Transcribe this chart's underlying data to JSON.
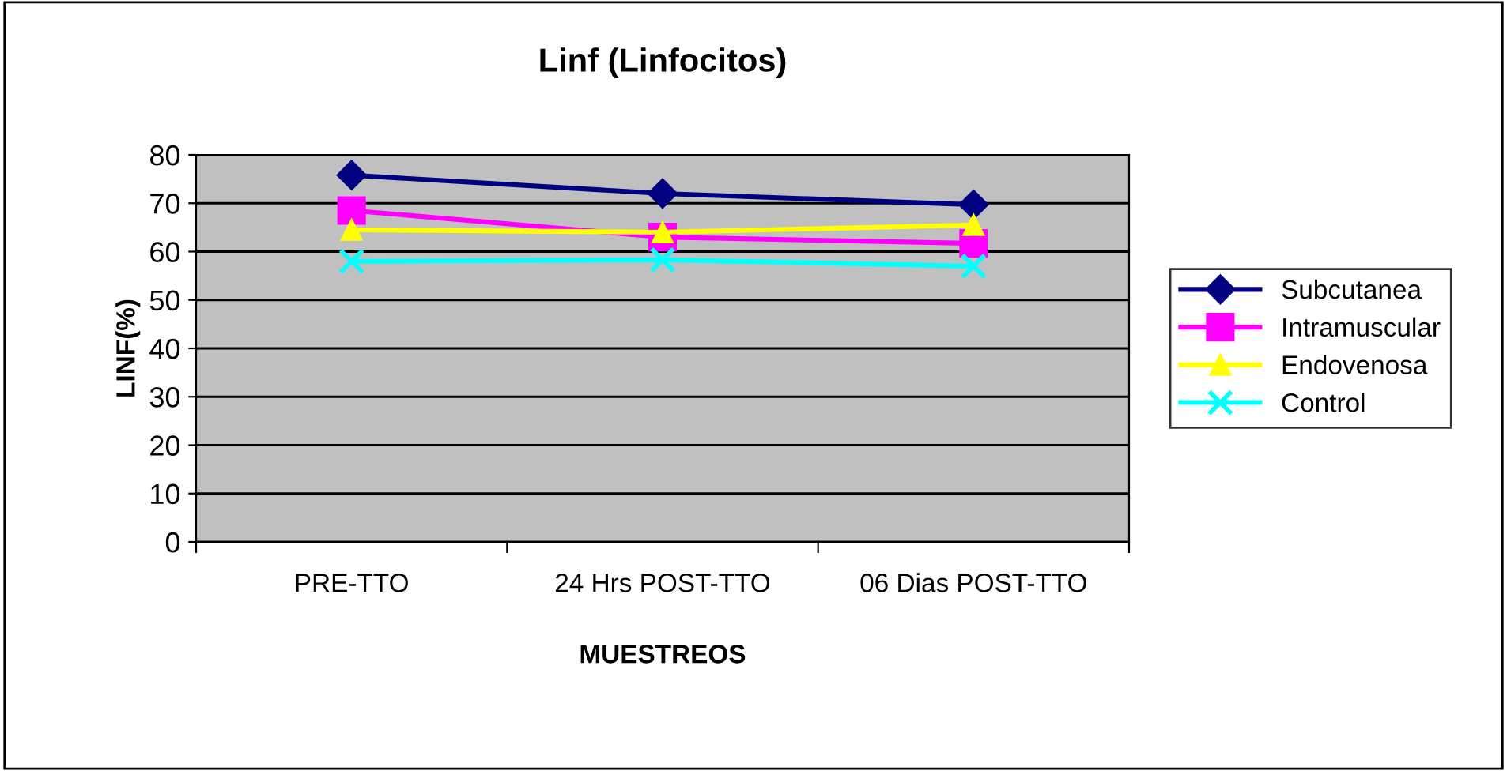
{
  "chart_data": {
    "type": "line",
    "title": "Linf (Linfocitos)",
    "xlabel": "MUESTREOS",
    "ylabel": "LINF(%)",
    "categories": [
      "PRE-TTO",
      "24 Hrs POST-TTO",
      "06 Dias POST-TTO"
    ],
    "series": [
      {
        "name": "Subcutanea",
        "color": "#000080",
        "marker": "diamond",
        "values": [
          75.8,
          72,
          69.7
        ]
      },
      {
        "name": "Intramuscular",
        "color": "#ff00ff",
        "marker": "square",
        "values": [
          68.5,
          63,
          61.7
        ]
      },
      {
        "name": "Endovenosa",
        "color": "#ffff00",
        "marker": "triangle",
        "values": [
          64.5,
          64,
          65.5
        ]
      },
      {
        "name": "Control",
        "color": "#00ffff",
        "marker": "cross",
        "values": [
          58,
          58.3,
          57
        ]
      }
    ],
    "ylim": [
      0,
      80
    ],
    "yticks": [
      0,
      10,
      20,
      30,
      40,
      50,
      60,
      70,
      80
    ],
    "grid": "y",
    "legend": "right",
    "line_style": "solid"
  }
}
